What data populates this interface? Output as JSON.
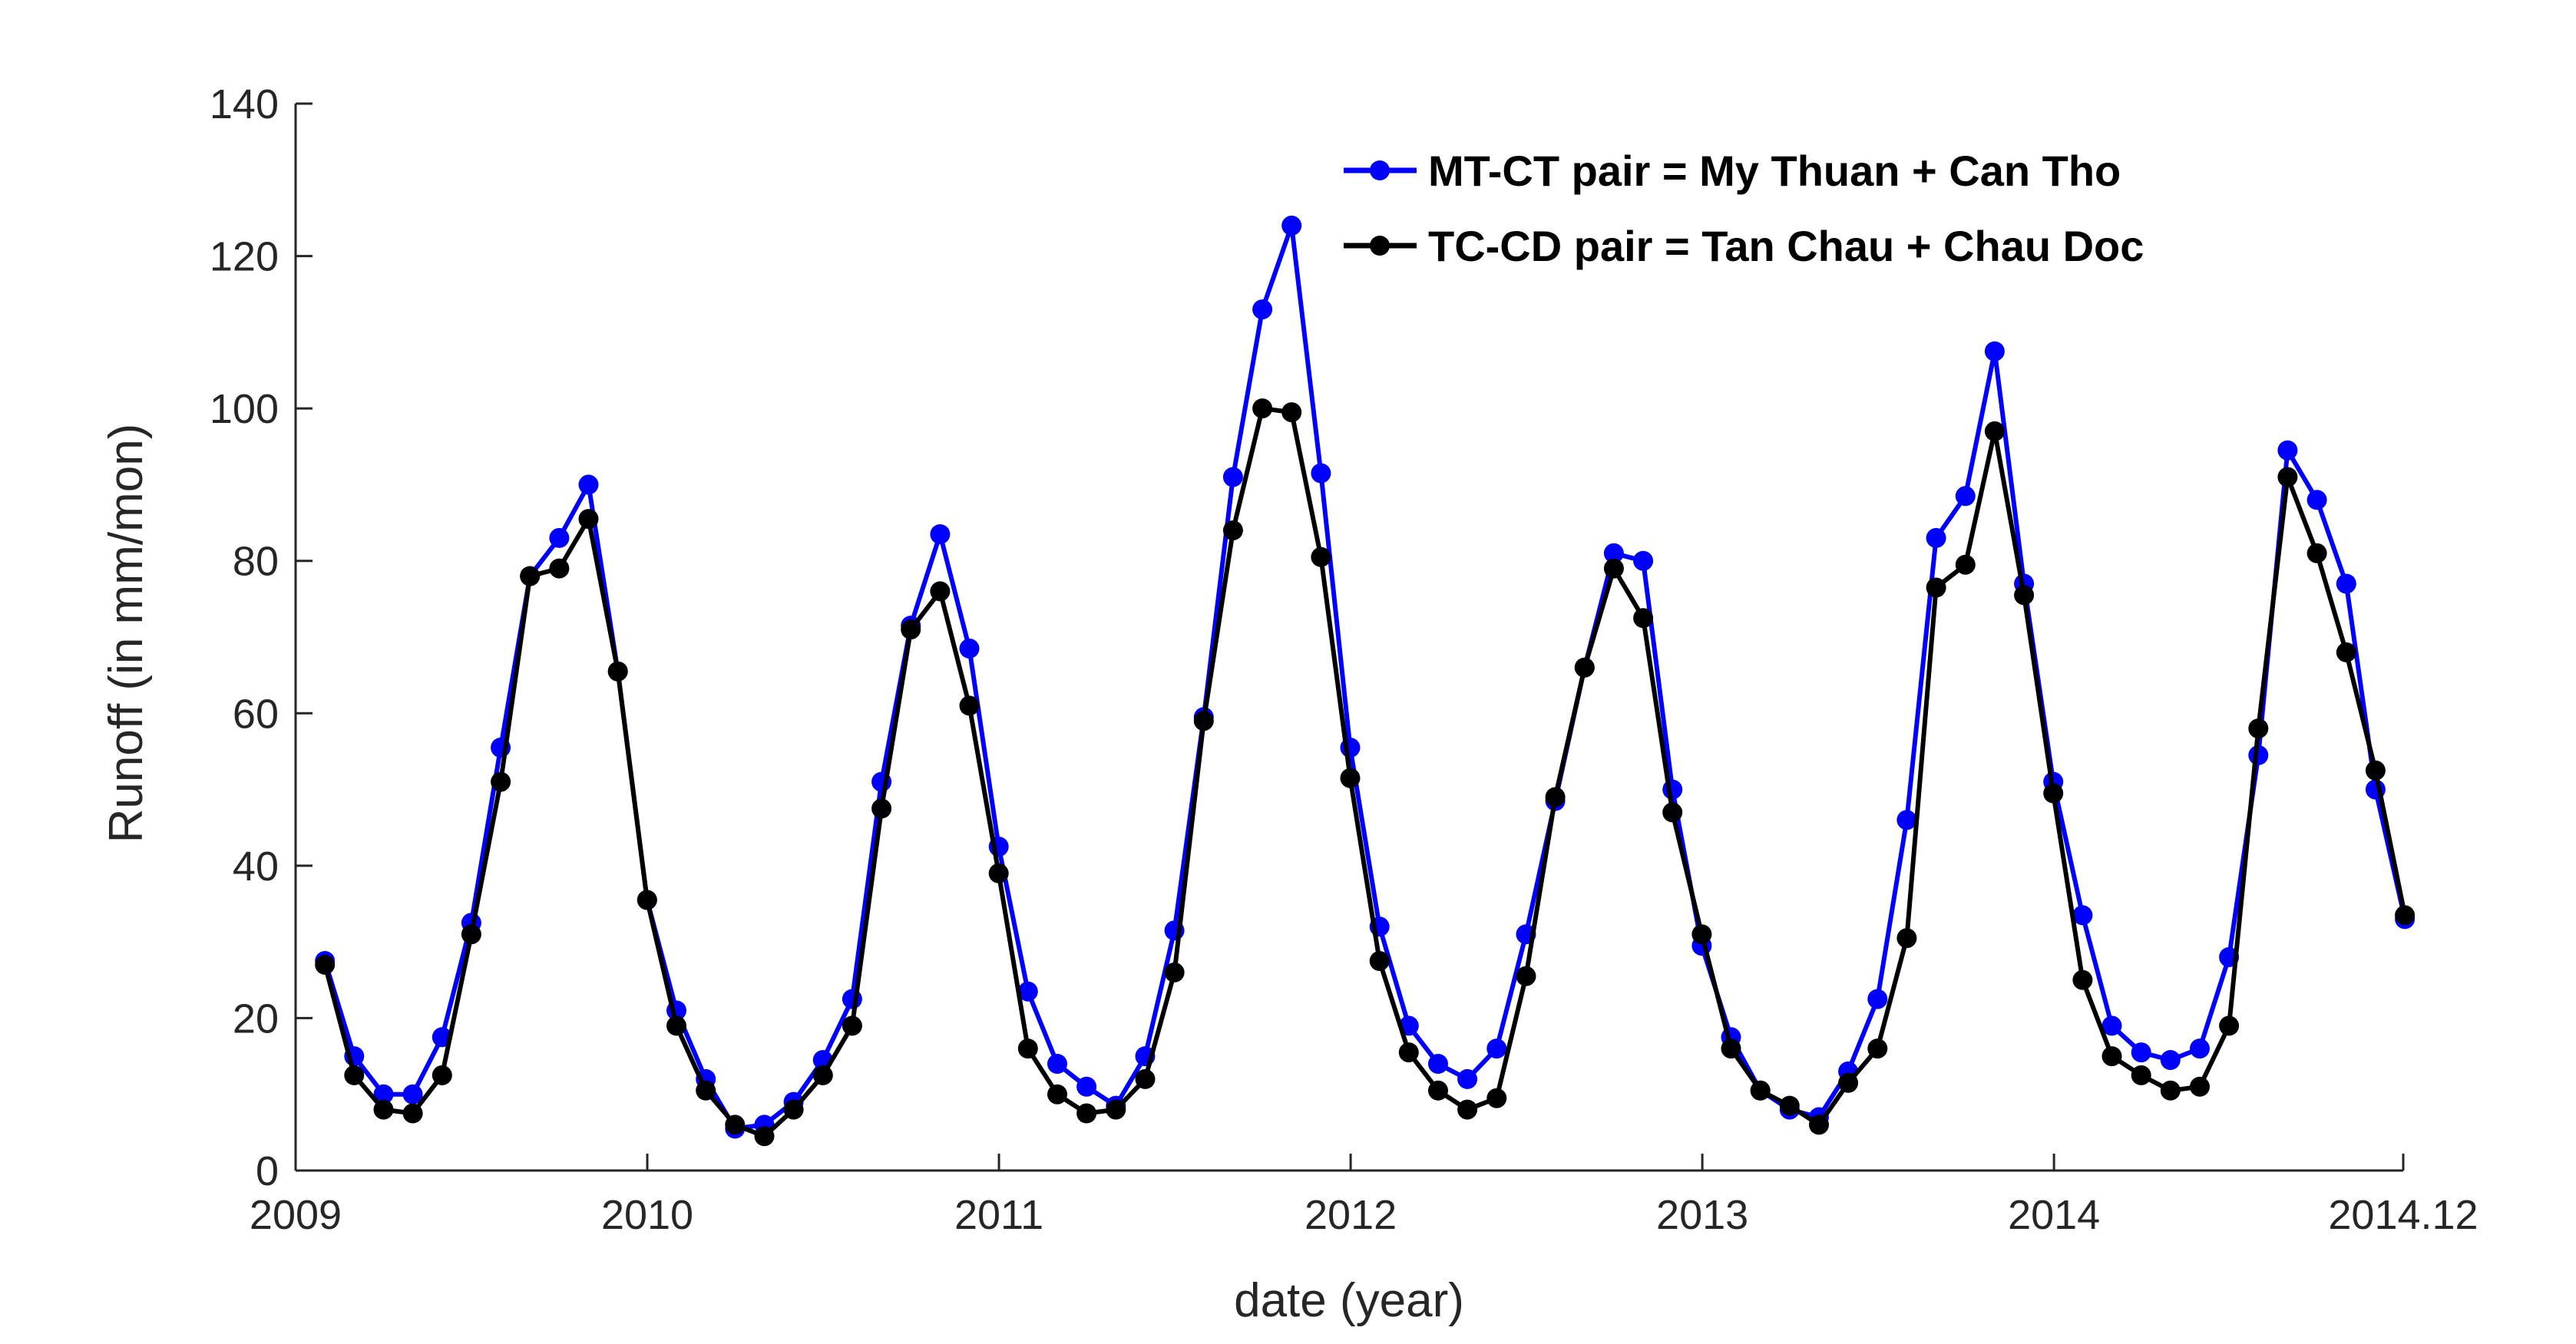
{
  "chart_data": {
    "type": "line",
    "title": "",
    "xlabel": "date (year)",
    "ylabel": "Runoff (in mm/mon)",
    "xlim": [
      2009,
      2014.9931
    ],
    "ylim": [
      0,
      140
    ],
    "x_ticks": [
      {
        "value": 2009,
        "label": "2009"
      },
      {
        "value": 2010,
        "label": "2010"
      },
      {
        "value": 2011,
        "label": "2011"
      },
      {
        "value": 2012,
        "label": "2012"
      },
      {
        "value": 2013,
        "label": "2013"
      },
      {
        "value": 2014,
        "label": "2014"
      },
      {
        "value": 2014.9931,
        "label": "2014.12"
      }
    ],
    "y_ticks": [
      {
        "value": 0,
        "label": "0"
      },
      {
        "value": 20,
        "label": "20"
      },
      {
        "value": 40,
        "label": "40"
      },
      {
        "value": 60,
        "label": "60"
      },
      {
        "value": 80,
        "label": "80"
      },
      {
        "value": 100,
        "label": "100"
      },
      {
        "value": 120,
        "label": "120"
      },
      {
        "value": 140,
        "label": "140"
      }
    ],
    "grid": false,
    "legend_position": "top-right",
    "x_start": 2009.0833,
    "x_step": 0.0833,
    "series": [
      {
        "name": "MT-CT pair = My Thuan + Can Tho",
        "color": "#0000ff",
        "values": [
          27.5,
          15,
          10,
          10,
          17.5,
          32.5,
          55.5,
          78,
          83,
          90,
          65.5,
          35.5,
          21,
          12,
          5.5,
          6,
          9,
          14.5,
          22.5,
          51,
          71.5,
          83.5,
          68.5,
          42.5,
          23.5,
          14,
          11,
          8.5,
          15,
          31.5,
          59.5,
          91,
          113,
          124,
          91.5,
          55.5,
          32,
          19,
          14,
          12,
          16,
          31,
          48.5,
          66,
          81,
          80,
          50,
          29.5,
          17.5,
          10.5,
          8,
          7,
          13,
          22.5,
          46,
          83,
          88.5,
          107.5,
          77,
          51,
          33.5,
          19,
          15.5,
          14.5,
          16,
          28,
          54.5,
          94.5,
          88,
          77,
          50,
          33
        ]
      },
      {
        "name": "TC-CD pair = Tan Chau + Chau Doc",
        "color": "#000000",
        "values": [
          27,
          12.5,
          8,
          7.5,
          12.5,
          31,
          51,
          78,
          79,
          85.5,
          65.5,
          35.5,
          19,
          10.5,
          6,
          4.5,
          8,
          12.5,
          19,
          47.5,
          71,
          76,
          61,
          39,
          16,
          10,
          7.5,
          8,
          12,
          26,
          59,
          84,
          100,
          99.5,
          80.5,
          51.5,
          27.5,
          15.5,
          10.5,
          8,
          9.5,
          25.5,
          49,
          66,
          79,
          72.5,
          47,
          31,
          16,
          10.5,
          8.5,
          6,
          11.5,
          16,
          30.5,
          76.5,
          79.5,
          97,
          75.5,
          49.5,
          25,
          15,
          12.5,
          10.5,
          11,
          19,
          58,
          91,
          81,
          68,
          52.5,
          33.5
        ]
      }
    ]
  }
}
